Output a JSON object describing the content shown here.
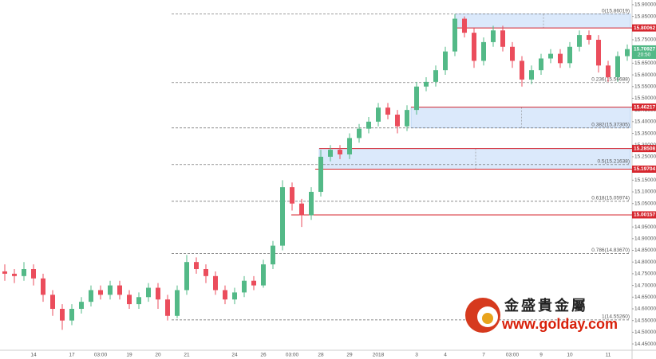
{
  "chart_data": {
    "type": "candlestick",
    "up_color": "#53b987",
    "down_color": "#eb4d5c",
    "grid": false,
    "categories": [
      null,
      null,
      null,
      "14",
      null,
      null,
      null,
      "17",
      null,
      null,
      "03:00",
      null,
      null,
      "19",
      null,
      null,
      "20",
      null,
      null,
      "21",
      null,
      null,
      null,
      null,
      "24",
      null,
      null,
      "26",
      null,
      null,
      "03:00",
      null,
      null,
      "28",
      null,
      null,
      "29",
      null,
      null,
      "2018",
      null,
      null,
      null,
      "3",
      null,
      null,
      "4",
      null,
      null,
      null,
      "7",
      null,
      null,
      "03:00",
      null,
      null,
      "9",
      null,
      null,
      "10",
      null,
      null,
      null,
      "11",
      null,
      null
    ],
    "open": [
      14.76,
      14.75,
      14.74,
      14.77,
      14.73,
      14.66,
      14.6,
      14.55,
      14.6,
      14.63,
      14.68,
      14.66,
      14.7,
      14.66,
      14.62,
      14.65,
      14.69,
      14.64,
      14.57,
      14.68,
      14.8,
      14.77,
      14.74,
      14.68,
      14.64,
      14.67,
      14.72,
      14.7,
      14.79,
      14.87,
      15.12,
      15.05,
      15.0,
      15.1,
      15.25,
      15.28,
      15.26,
      15.33,
      15.37,
      15.4,
      15.46,
      15.43,
      15.38,
      15.45,
      15.55,
      15.57,
      15.62,
      15.7,
      15.84,
      15.78,
      15.66,
      15.74,
      15.79,
      15.72,
      15.66,
      15.58,
      15.62,
      15.67,
      15.69,
      15.65,
      15.72,
      15.77,
      15.75,
      15.64,
      15.59,
      15.68
    ],
    "high": [
      14.79,
      14.77,
      14.8,
      14.79,
      14.75,
      14.68,
      14.62,
      14.62,
      14.65,
      14.7,
      14.7,
      14.72,
      14.72,
      14.68,
      14.67,
      14.71,
      14.71,
      14.66,
      14.7,
      14.83,
      14.82,
      14.79,
      14.76,
      14.7,
      14.69,
      14.74,
      14.74,
      14.81,
      14.89,
      15.15,
      15.14,
      15.07,
      15.12,
      15.28,
      15.3,
      15.3,
      15.35,
      15.39,
      15.42,
      15.48,
      15.48,
      15.45,
      15.47,
      15.57,
      15.59,
      15.64,
      15.72,
      15.86,
      15.85,
      15.8,
      15.76,
      15.81,
      15.81,
      15.74,
      15.68,
      15.64,
      15.69,
      15.71,
      15.71,
      15.74,
      15.79,
      15.79,
      15.77,
      15.66,
      15.7,
      15.73
    ],
    "low": [
      14.72,
      14.71,
      14.72,
      14.7,
      14.63,
      14.57,
      14.51,
      14.53,
      14.58,
      14.61,
      14.64,
      14.64,
      14.64,
      14.6,
      14.6,
      14.63,
      14.6,
      14.55,
      14.56,
      14.66,
      14.75,
      14.71,
      14.66,
      14.62,
      14.62,
      14.65,
      14.68,
      14.69,
      14.77,
      14.85,
      15.02,
      14.95,
      14.98,
      15.08,
      15.23,
      15.24,
      15.24,
      15.31,
      15.35,
      15.38,
      15.41,
      15.35,
      15.36,
      15.43,
      15.53,
      15.55,
      15.6,
      15.68,
      15.76,
      15.63,
      15.64,
      15.72,
      15.7,
      15.63,
      15.55,
      15.56,
      15.6,
      15.65,
      15.63,
      15.63,
      15.7,
      15.73,
      15.61,
      15.57,
      15.57,
      15.66
    ],
    "close": [
      14.75,
      14.74,
      14.77,
      14.73,
      14.66,
      14.6,
      14.55,
      14.6,
      14.63,
      14.68,
      14.66,
      14.7,
      14.66,
      14.62,
      14.65,
      14.69,
      14.64,
      14.57,
      14.68,
      14.8,
      14.77,
      14.74,
      14.68,
      14.64,
      14.67,
      14.72,
      14.7,
      14.79,
      14.87,
      15.12,
      15.05,
      15.0,
      15.1,
      15.25,
      15.28,
      15.26,
      15.33,
      15.37,
      15.4,
      15.46,
      15.43,
      15.38,
      15.45,
      15.55,
      15.57,
      15.62,
      15.7,
      15.84,
      15.78,
      15.66,
      15.74,
      15.79,
      15.72,
      15.66,
      15.58,
      15.62,
      15.67,
      15.69,
      15.65,
      15.72,
      15.77,
      15.75,
      15.64,
      15.59,
      15.68,
      15.71
    ],
    "ylim": [
      14.423,
      15.92
    ],
    "yticks": [
      {
        "value": 14.45,
        "label": "14.45000"
      },
      {
        "value": 14.5,
        "label": "14.50000"
      },
      {
        "value": 14.55,
        "label": "14.55000"
      },
      {
        "value": 14.6,
        "label": "14.60000"
      },
      {
        "value": 14.65,
        "label": "14.65000"
      },
      {
        "value": 14.7,
        "label": "14.70000"
      },
      {
        "value": 14.75,
        "label": "14.75000"
      },
      {
        "value": 14.8,
        "label": "14.80000"
      },
      {
        "value": 14.85,
        "label": "14.85000"
      },
      {
        "value": 14.9,
        "label": "14.90000"
      },
      {
        "value": 14.95,
        "label": "14.95000"
      },
      {
        "value": 15.0,
        "label": "15.00000"
      },
      {
        "value": 15.05,
        "label": "15.05000"
      },
      {
        "value": 15.1,
        "label": "15.10000"
      },
      {
        "value": 15.15,
        "label": "15.15000"
      },
      {
        "value": 15.2,
        "label": "15.20000"
      },
      {
        "value": 15.25,
        "label": "15.25000"
      },
      {
        "value": 15.3,
        "label": "15.30000"
      },
      {
        "value": 15.35,
        "label": "15.35000"
      },
      {
        "value": 15.4,
        "label": "15.40000"
      },
      {
        "value": 15.45,
        "label": "15.45000"
      },
      {
        "value": 15.5,
        "label": "15.50000"
      },
      {
        "value": 15.55,
        "label": "15.55000"
      },
      {
        "value": 15.6,
        "label": "15.60000"
      },
      {
        "value": 15.65,
        "label": "15.65000"
      },
      {
        "value": 15.7,
        "label": "15.70000"
      },
      {
        "value": 15.75,
        "label": "15.75000"
      },
      {
        "value": 15.8,
        "label": "15.80000"
      },
      {
        "value": 15.85,
        "label": "15.85000"
      },
      {
        "value": 15.9,
        "label": "15.90000"
      }
    ],
    "fib_levels": [
      {
        "value": 15.86019,
        "label": "0(15.86019)"
      },
      {
        "value": 15.56688,
        "label": "0.236(15.56688)"
      },
      {
        "value": 15.37305,
        "label": "0.382(15.37305)"
      },
      {
        "value": 15.21638,
        "label": "0.5(15.21638)"
      },
      {
        "value": 15.05974,
        "label": "0.618(15.05974)"
      },
      {
        "value": 14.8367,
        "label": "0.786(14.83670)"
      },
      {
        "value": 14.5526,
        "label": "1(14.55260)"
      }
    ],
    "price_levels": [
      {
        "value": 15.80062,
        "label": "15.80062"
      },
      {
        "value": 15.46217,
        "label": "15.46217"
      },
      {
        "value": 15.28508,
        "label": "15.28508"
      },
      {
        "value": 15.19704,
        "label": "15.19704"
      },
      {
        "value": 15.00157,
        "label": "15.00157"
      }
    ],
    "last_price": {
      "value": 15.70927,
      "label": "15.70927"
    },
    "countdown": "20:50",
    "watermark": {
      "name": "金盛貴金屬",
      "url": "www.golday.com"
    }
  }
}
